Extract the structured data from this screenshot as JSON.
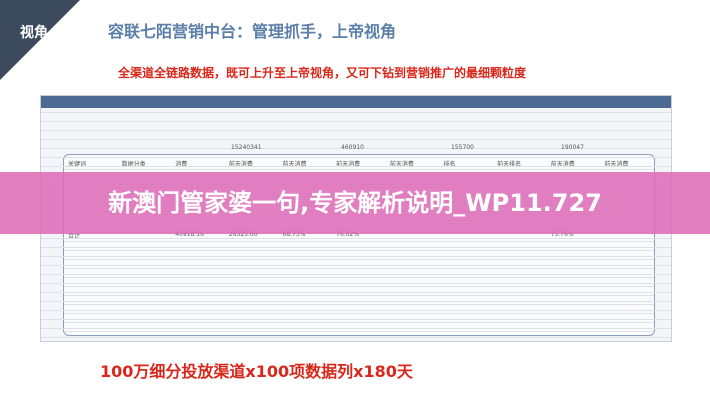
{
  "header": {
    "corner_label": "视角",
    "title": "容联七陌营销中台：管理抓手，上帝视角",
    "subtitle": "全渠道全链路数据，既可上升至上帝视角，又可下钻到营销推广的最细颗粒度"
  },
  "table": {
    "columns": [
      "关键词",
      "数据分类",
      "消费",
      "前天消费",
      "前天消费",
      "前天消费",
      "前天消费",
      "排名",
      "前天排名",
      "前天消费",
      "前天消费"
    ],
    "total_row": [
      "合计",
      "",
      "40918.16",
      "26325.00",
      "68.73%",
      "76.02%",
      "",
      "",
      "",
      "75.76%",
      ""
    ],
    "top_row": [
      "15240341",
      "460910",
      "155700",
      "190047"
    ]
  },
  "banner": "新澳门管家婆一句,专家解析说明_WP11.727",
  "footer": "100万细分投放渠道x100项数据列x180天"
}
